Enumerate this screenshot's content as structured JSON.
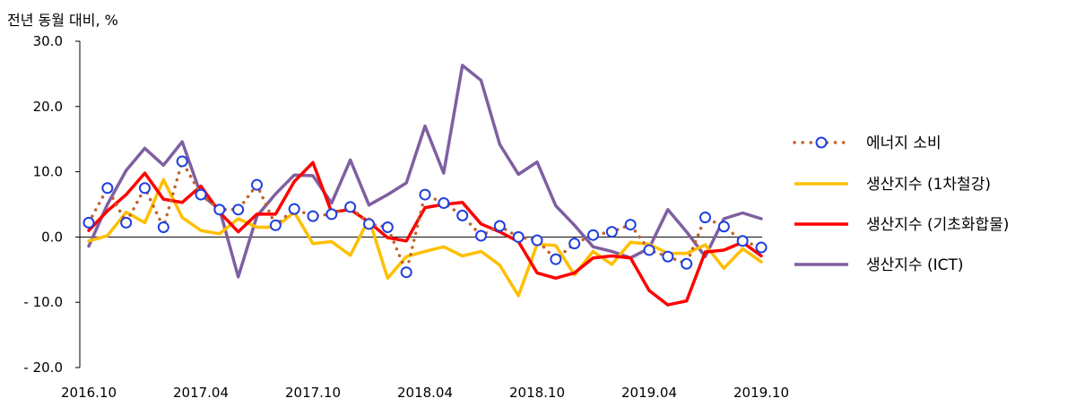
{
  "chart_data": {
    "type": "line",
    "ylabel": "전년 동월 대비, %",
    "ylim": [
      -20,
      30
    ],
    "yticks": [
      30,
      20,
      10,
      0,
      -10,
      -20
    ],
    "ytick_labels": [
      "30.0",
      "20.0",
      "10.0",
      "0.0",
      "- 10.0",
      "- 20.0"
    ],
    "xtick_labels": [
      "2016.10",
      "2017.04",
      "2017.10",
      "2018.04",
      "2018.10",
      "2019.04",
      "2019.10"
    ],
    "xtick_index": [
      0,
      6,
      12,
      18,
      24,
      30,
      36
    ],
    "x": [
      "2016.10",
      "2016.11",
      "2016.12",
      "2017.01",
      "2017.02",
      "2017.03",
      "2017.04",
      "2017.05",
      "2017.06",
      "2017.07",
      "2017.08",
      "2017.09",
      "2017.10",
      "2017.11",
      "2017.12",
      "2018.01",
      "2018.02",
      "2018.03",
      "2018.04",
      "2018.05",
      "2018.06",
      "2018.07",
      "2018.08",
      "2018.09",
      "2018.10",
      "2018.11",
      "2018.12",
      "2019.01",
      "2019.02",
      "2019.03",
      "2019.04",
      "2019.05",
      "2019.06",
      "2019.07",
      "2019.08",
      "2019.09",
      "2019.10"
    ],
    "legend_position": "right",
    "grid": false,
    "series": [
      {
        "name": "에너지 소비",
        "style": "dotted-markers",
        "color": "#C0622B",
        "marker_color": "#1F3FE0",
        "values": [
          2.2,
          7.5,
          2.2,
          7.5,
          1.5,
          11.6,
          6.5,
          4.2,
          4.2,
          8.0,
          1.8,
          4.3,
          3.2,
          3.5,
          4.6,
          2.0,
          1.5,
          -5.4,
          6.5,
          5.2,
          3.3,
          0.2,
          1.7,
          0.0,
          -0.5,
          -3.4,
          -1.0,
          0.3,
          0.8,
          1.9,
          -2.0,
          -3.0,
          -4.1,
          3.0,
          1.6,
          -0.6,
          -1.6
        ]
      },
      {
        "name": "생산지수 (1차철강)",
        "style": "line",
        "color": "#FFBF00",
        "values": [
          -0.6,
          0.2,
          3.8,
          2.2,
          8.8,
          3.0,
          1.0,
          0.5,
          2.8,
          1.5,
          1.5,
          3.8,
          -1.0,
          -0.7,
          -2.8,
          2.8,
          -6.3,
          -3.0,
          -2.2,
          -1.5,
          -2.9,
          -2.2,
          -4.3,
          -9.0,
          -1.1,
          -1.3,
          -5.8,
          -2.2,
          -4.2,
          -0.8,
          -1.1,
          -2.5,
          -2.5,
          -1.2,
          -4.8,
          -1.8,
          -3.8
        ]
      },
      {
        "name": "생산지수 (기초화합물)",
        "style": "line",
        "color": "#FF0000",
        "values": [
          1.0,
          4.0,
          6.5,
          9.8,
          5.8,
          5.3,
          7.8,
          3.8,
          0.8,
          3.5,
          3.5,
          8.5,
          11.4,
          3.8,
          4.2,
          2.3,
          -0.1,
          -0.6,
          4.5,
          5.0,
          5.3,
          2.0,
          0.8,
          -0.7,
          -5.5,
          -6.3,
          -5.5,
          -3.2,
          -2.9,
          -3.2,
          -8.2,
          -10.4,
          -9.8,
          -2.3,
          -2.0,
          -0.8,
          -2.9
        ]
      },
      {
        "name": "생산지수 (ICT)",
        "style": "line",
        "color": "#7F5FA0",
        "values": [
          -1.4,
          5.0,
          10.2,
          13.6,
          11.0,
          14.6,
          6.5,
          4.3,
          -6.1,
          3.2,
          6.6,
          9.5,
          9.4,
          5.2,
          11.8,
          4.9,
          6.5,
          8.3,
          17.0,
          9.8,
          26.3,
          24.0,
          14.2,
          9.6,
          11.5,
          4.8,
          1.8,
          -1.5,
          -2.2,
          -3.2,
          -1.7,
          4.2,
          0.8,
          -3.0,
          2.8,
          3.7,
          2.8
        ]
      }
    ]
  }
}
